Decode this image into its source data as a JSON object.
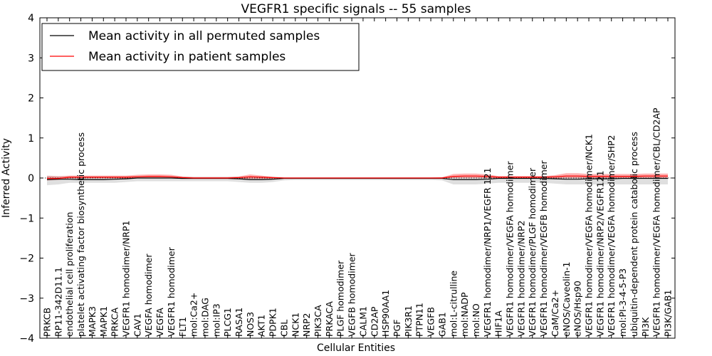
{
  "chart_data": {
    "type": "line",
    "title": "VEGFR1 specific signals -- 55 samples",
    "xlabel": "Cellular Entities",
    "ylabel": "Inferred Activity",
    "ylim": [
      -4,
      4
    ],
    "yticks": [
      "4",
      "3",
      "2",
      "1",
      "0",
      "−1",
      "−2",
      "−3",
      "−4"
    ],
    "ytick_values": [
      4,
      3,
      2,
      1,
      0,
      -1,
      -2,
      -3,
      -4
    ],
    "legend_position": "top-left",
    "categories": [
      "PRKCB",
      "RP11-342D11.1",
      "endothelial cell proliferation",
      "platelet activating factor biosynthetic process",
      "MAPK3",
      "MAPK1",
      "PRKCA",
      "VEGFR1 homodimer/NRP1",
      "CAV1",
      "VEGFA homodimer",
      "VEGFA",
      "VEGFR1 homodimer",
      "FLT1",
      "mol:Ca2+",
      "mol:DAG",
      "mol:IP3",
      "PLCG1",
      "RASA1",
      "NOS3",
      "AKT1",
      "PDPK1",
      "CBL",
      "NCK1",
      "NRP2",
      "PIK3CA",
      "PRKACA",
      "PLGF homodimer",
      "VEGFB homodimer",
      "CALM1",
      "CD2AP",
      "HSP90AA1",
      "PGF",
      "PIK3R1",
      "PTPN11",
      "VEGFB",
      "GAB1",
      "mol:L-citrulline",
      "mol:NADP",
      "mol:NO",
      "VEGFR1 homodimer/NRP1/VEGFR 121",
      "HIF1A",
      "VEGFR1 homodimer/VEGFA homodimer",
      "VEGFR1 homodimer/NRP2",
      "VEGFR1 homodimer/PLGF homodimer",
      "VEGFR1 homodimer/VEGFB homodimer",
      "CaM/Ca2+",
      "eNOS/Caveolin-1",
      "eNOS/Hsp90",
      "VEGFR1 homodimer/VEGFA homodimer/NCK1",
      "VEGFR1 homodimer/NRP2/VEGFR121",
      "VEGFR1 homodimer/VEGFA homodimer/SHP2",
      "mol:PI-3-4-5-P3",
      "ubiquitin-dependent protein catabolic process",
      "PI3K",
      "VEGFR1 homodimer/VEGFA homodimer/CBL/CD2AP",
      "PI3K/GAB1"
    ],
    "series": [
      {
        "name": "Mean activity in all permuted samples",
        "color": "#000000",
        "values": [
          -0.04,
          -0.03,
          -0.03,
          -0.04,
          -0.04,
          -0.04,
          -0.03,
          -0.02,
          0,
          0,
          0,
          0,
          -0.01,
          -0.01,
          -0.01,
          -0.01,
          -0.01,
          -0.02,
          -0.04,
          -0.04,
          -0.03,
          -0.01,
          -0.01,
          -0.01,
          -0.01,
          -0.01,
          -0.01,
          -0.01,
          -0.01,
          -0.01,
          -0.01,
          -0.01,
          -0.01,
          -0.01,
          -0.01,
          -0.01,
          -0.04,
          -0.04,
          -0.04,
          -0.03,
          -0.01,
          -0.01,
          -0.01,
          -0.01,
          -0.01,
          -0.02,
          -0.03,
          -0.03,
          -0.02,
          -0.02,
          -0.02,
          -0.01,
          -0.01,
          -0.01,
          -0.01,
          -0.01
        ],
        "band_lower": [
          -0.18,
          -0.16,
          -0.12,
          -0.12,
          -0.12,
          -0.12,
          -0.12,
          -0.1,
          -0.08,
          -0.08,
          -0.08,
          -0.08,
          -0.08,
          -0.08,
          -0.08,
          -0.08,
          -0.08,
          -0.1,
          -0.12,
          -0.12,
          -0.1,
          -0.06,
          -0.05,
          -0.05,
          -0.05,
          -0.05,
          -0.05,
          -0.05,
          -0.05,
          -0.05,
          -0.05,
          -0.05,
          -0.05,
          -0.05,
          -0.05,
          -0.06,
          -0.16,
          -0.16,
          -0.16,
          -0.14,
          -0.12,
          -0.12,
          -0.12,
          -0.12,
          -0.12,
          -0.14,
          -0.16,
          -0.16,
          -0.16,
          -0.16,
          -0.16,
          -0.16,
          -0.16,
          -0.16,
          -0.16,
          -0.16
        ],
        "band_upper": [
          0.06,
          0.05,
          0.04,
          0.04,
          0.04,
          0.04,
          0.04,
          0.04,
          0.04,
          0.04,
          0.04,
          0.04,
          0.03,
          0.03,
          0.03,
          0.03,
          0.03,
          0.03,
          0.04,
          0.04,
          0.03,
          0.02,
          0.02,
          0.02,
          0.02,
          0.02,
          0.02,
          0.02,
          0.02,
          0.02,
          0.02,
          0.02,
          0.02,
          0.02,
          0.02,
          0.02,
          0.05,
          0.05,
          0.05,
          0.05,
          0.04,
          0.04,
          0.04,
          0.04,
          0.04,
          0.05,
          0.06,
          0.06,
          0.06,
          0.06,
          0.06,
          0.06,
          0.06,
          0.06,
          0.06,
          0.06
        ]
      },
      {
        "name": "Mean activity in patient samples",
        "color": "#ff0000",
        "values": [
          -0.01,
          -0.01,
          0.02,
          0.02,
          0.02,
          0.02,
          0.02,
          0.02,
          0.03,
          0.04,
          0.04,
          0.03,
          0.01,
          0,
          0,
          0,
          0,
          0.01,
          0.03,
          0.02,
          0.01,
          0,
          0,
          0,
          0,
          0,
          0,
          0,
          0,
          0,
          0,
          0,
          0,
          0,
          0,
          0,
          0.04,
          0.05,
          0.05,
          0.04,
          0.02,
          0.02,
          0.02,
          0.02,
          0.02,
          0.03,
          0.05,
          0.05,
          0.04,
          0.04,
          0.04,
          0.04,
          0.04,
          0.05,
          0.05,
          0.05
        ],
        "band_lower": [
          -0.06,
          -0.05,
          -0.01,
          -0.01,
          -0.01,
          -0.01,
          -0.01,
          -0.01,
          -0.01,
          -0.01,
          -0.01,
          -0.01,
          -0.02,
          -0.02,
          -0.02,
          -0.02,
          -0.02,
          -0.02,
          -0.02,
          -0.02,
          -0.02,
          -0.01,
          -0.01,
          -0.01,
          -0.01,
          -0.01,
          -0.01,
          -0.01,
          -0.01,
          -0.01,
          -0.01,
          -0.01,
          -0.01,
          -0.01,
          -0.01,
          -0.01,
          0,
          0,
          0,
          0,
          -0.01,
          -0.01,
          -0.01,
          -0.01,
          -0.01,
          -0.01,
          0,
          0,
          0,
          0,
          0,
          0,
          0,
          0,
          0,
          0
        ],
        "band_upper": [
          0.05,
          0.04,
          0.06,
          0.06,
          0.06,
          0.06,
          0.06,
          0.06,
          0.08,
          0.09,
          0.09,
          0.08,
          0.04,
          0.02,
          0.02,
          0.02,
          0.02,
          0.04,
          0.09,
          0.06,
          0.03,
          0.01,
          0.01,
          0.01,
          0.01,
          0.01,
          0.01,
          0.01,
          0.01,
          0.01,
          0.01,
          0.01,
          0.01,
          0.01,
          0.01,
          0.02,
          0.1,
          0.11,
          0.11,
          0.09,
          0.05,
          0.05,
          0.05,
          0.05,
          0.05,
          0.07,
          0.12,
          0.12,
          0.1,
          0.1,
          0.1,
          0.1,
          0.1,
          0.11,
          0.11,
          0.11
        ]
      }
    ]
  }
}
